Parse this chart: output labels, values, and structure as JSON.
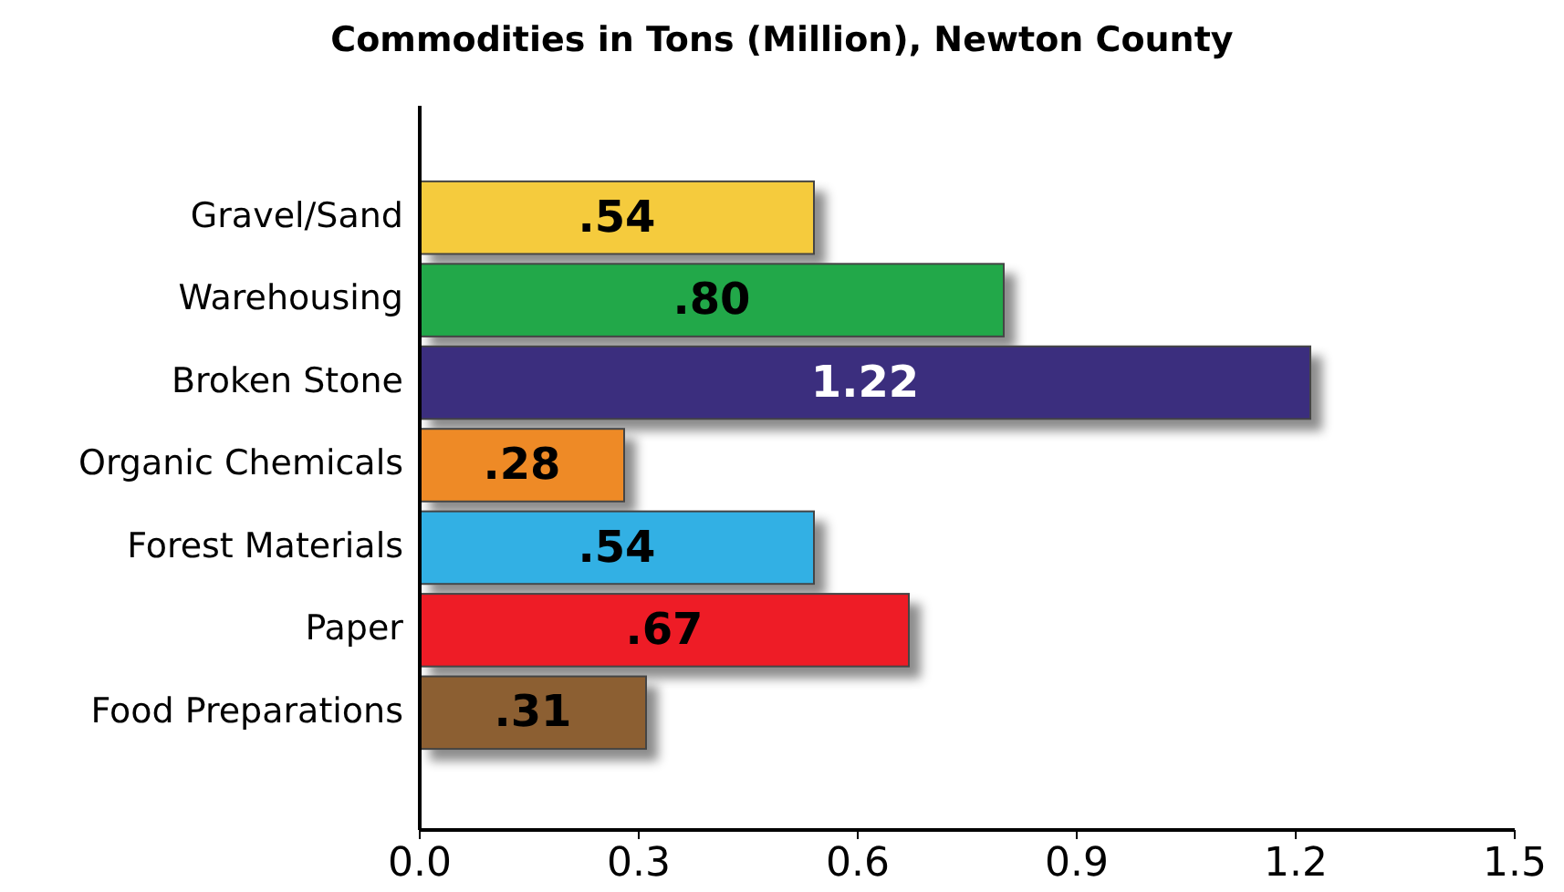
{
  "chart_data": {
    "type": "bar",
    "orientation": "horizontal",
    "title": "Commodities in Tons (Million), Newton County",
    "categories": [
      "Gravel/Sand",
      "Warehousing",
      "Broken Stone",
      "Organic Chemicals",
      "Forest Materials",
      "Paper",
      "Food Preparations"
    ],
    "values": [
      0.54,
      0.8,
      1.22,
      0.28,
      0.54,
      0.67,
      0.31
    ],
    "colors": [
      "#f5cb3c",
      "#22a84a",
      "#3a2d7e",
      "#ee8a26",
      "#33b0e4",
      "#ee1c25",
      "#8c5e32"
    ],
    "value_labels": [
      ".54",
      ".80",
      "1.22",
      ".28",
      ".54",
      ".67",
      ".31"
    ],
    "xlim": [
      0,
      1.5
    ],
    "xticks": [
      {
        "value": 0,
        "label": "0.0"
      },
      0.3,
      0.6,
      0.9,
      1.2,
      1.5
    ],
    "grid": false
  }
}
